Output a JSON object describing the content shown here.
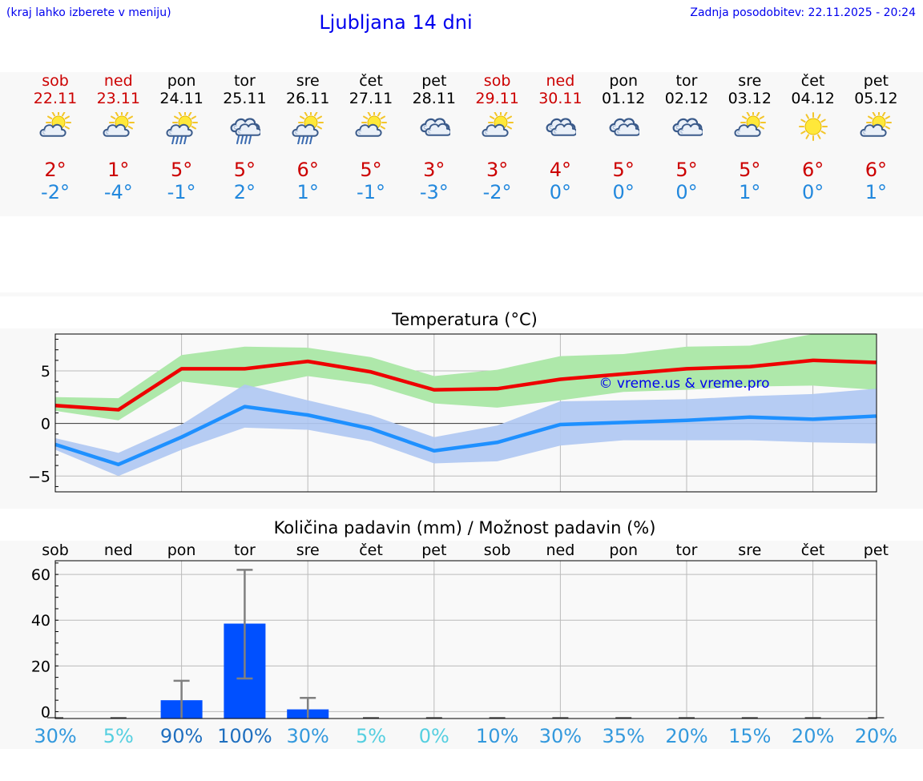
{
  "header": {
    "menu_hint": "(kraj lahko izberete v meniju)",
    "title": "Ljubljana 14 dni",
    "updated": "Zadnja posodobitev: 22.11.2025 - 20:24"
  },
  "colors": {
    "link": "#0000ee",
    "max_temp": "#cc0000",
    "min_temp": "#2288dd",
    "max_band": "#aee8aa",
    "min_band": "#b0c8f2",
    "max_line": "#ee0000",
    "min_line": "#1e90ff",
    "precip_bar": "#0050ff"
  },
  "days": [
    {
      "name": "sob",
      "date": "22.11",
      "weekend": true,
      "icon": "partly-cloudy-icon",
      "tmax": "2°",
      "tmin": "-2°"
    },
    {
      "name": "ned",
      "date": "23.11",
      "weekend": true,
      "icon": "partly-cloudy-icon",
      "tmax": "1°",
      "tmin": "-4°"
    },
    {
      "name": "pon",
      "date": "24.11",
      "weekend": false,
      "icon": "partly-cloudy-rain-icon",
      "tmax": "5°",
      "tmin": "-1°"
    },
    {
      "name": "tor",
      "date": "25.11",
      "weekend": false,
      "icon": "cloudy-rain-icon",
      "tmax": "5°",
      "tmin": "2°"
    },
    {
      "name": "sre",
      "date": "26.11",
      "weekend": false,
      "icon": "partly-cloudy-rain-icon",
      "tmax": "6°",
      "tmin": "1°"
    },
    {
      "name": "čet",
      "date": "27.11",
      "weekend": false,
      "icon": "partly-cloudy-icon",
      "tmax": "5°",
      "tmin": "-1°"
    },
    {
      "name": "pet",
      "date": "28.11",
      "weekend": false,
      "icon": "cloudy-icon",
      "tmax": "3°",
      "tmin": "-3°"
    },
    {
      "name": "sob",
      "date": "29.11",
      "weekend": true,
      "icon": "partly-cloudy-icon",
      "tmax": "3°",
      "tmin": "-2°"
    },
    {
      "name": "ned",
      "date": "30.11",
      "weekend": true,
      "icon": "cloudy-icon",
      "tmax": "4°",
      "tmin": "0°"
    },
    {
      "name": "pon",
      "date": "01.12",
      "weekend": false,
      "icon": "cloudy-icon",
      "tmax": "5°",
      "tmin": "0°"
    },
    {
      "name": "tor",
      "date": "02.12",
      "weekend": false,
      "icon": "cloudy-icon",
      "tmax": "5°",
      "tmin": "0°"
    },
    {
      "name": "sre",
      "date": "03.12",
      "weekend": false,
      "icon": "partly-cloudy-icon",
      "tmax": "5°",
      "tmin": "1°"
    },
    {
      "name": "čet",
      "date": "04.12",
      "weekend": false,
      "icon": "sunny-icon",
      "tmax": "6°",
      "tmin": "0°"
    },
    {
      "name": "pet",
      "date": "05.12",
      "weekend": false,
      "icon": "partly-cloudy-icon",
      "tmax": "6°",
      "tmin": "1°"
    }
  ],
  "chart_data": [
    {
      "type": "line",
      "title": "Temperatura (°C)",
      "ylim": [
        -6.5,
        8.5
      ],
      "yticks": [
        -5,
        0,
        5
      ],
      "ytick_labels": [
        "−5",
        "0",
        "5"
      ],
      "grid": true,
      "watermark": "© vreme.us & vreme.pro",
      "x": [
        0,
        1,
        2,
        3,
        4,
        5,
        6,
        7,
        8,
        9,
        10,
        11,
        12,
        13
      ],
      "series": [
        {
          "role": "max",
          "values": [
            1.7,
            1.3,
            5.2,
            5.2,
            5.9,
            4.9,
            3.2,
            3.3,
            4.2,
            4.7,
            5.2,
            5.4,
            6.0,
            5.8
          ],
          "band_low": [
            1.2,
            0.3,
            4.0,
            3.3,
            4.5,
            3.7,
            1.9,
            1.5,
            2.2,
            3.0,
            3.2,
            3.5,
            3.6,
            3.2
          ],
          "band_high": [
            2.5,
            2.4,
            6.5,
            7.3,
            7.2,
            6.3,
            4.5,
            5.1,
            6.4,
            6.6,
            7.3,
            7.4,
            8.5,
            8.5
          ]
        },
        {
          "role": "min",
          "values": [
            -2.0,
            -3.9,
            -1.3,
            1.6,
            0.8,
            -0.5,
            -2.6,
            -1.8,
            -0.1,
            0.1,
            0.3,
            0.6,
            0.4,
            0.7
          ],
          "band_low": [
            -2.5,
            -5.0,
            -2.5,
            -0.4,
            -0.6,
            -1.7,
            -3.8,
            -3.6,
            -2.1,
            -1.6,
            -1.6,
            -1.6,
            -1.8,
            -1.9
          ],
          "band_high": [
            -1.4,
            -2.8,
            -0.1,
            3.7,
            2.2,
            0.8,
            -1.3,
            -0.2,
            2.1,
            2.2,
            2.3,
            2.6,
            2.8,
            3.3
          ]
        }
      ]
    },
    {
      "type": "bar",
      "title": "Količina padavin (mm) / Možnost padavin (%)",
      "categories": [
        "sob",
        "ned",
        "pon",
        "tor",
        "sre",
        "čet",
        "pet",
        "sob",
        "ned",
        "pon",
        "tor",
        "sre",
        "čet",
        "pet"
      ],
      "values": [
        0,
        0,
        5,
        38.5,
        1,
        0,
        0,
        0,
        0,
        0,
        0,
        0,
        0,
        0
      ],
      "error_high": [
        0,
        0,
        13.5,
        62,
        6,
        0,
        0,
        0,
        0,
        0,
        0,
        0,
        0,
        0
      ],
      "error_low": [
        0,
        0,
        0,
        14.5,
        0,
        0,
        0,
        0,
        0,
        0,
        0,
        0,
        0,
        0
      ],
      "ylim": [
        -3,
        66
      ],
      "yticks": [
        0,
        20,
        40,
        60
      ],
      "ytick_labels": [
        "0",
        "20",
        "40",
        "60"
      ],
      "grid": true,
      "chance": [
        "30%",
        "5%",
        "90%",
        "100%",
        "30%",
        "5%",
        "0%",
        "10%",
        "30%",
        "35%",
        "20%",
        "15%",
        "20%",
        "20%"
      ],
      "chance_values": [
        30,
        5,
        90,
        100,
        30,
        5,
        0,
        10,
        30,
        35,
        20,
        15,
        20,
        20
      ]
    }
  ]
}
